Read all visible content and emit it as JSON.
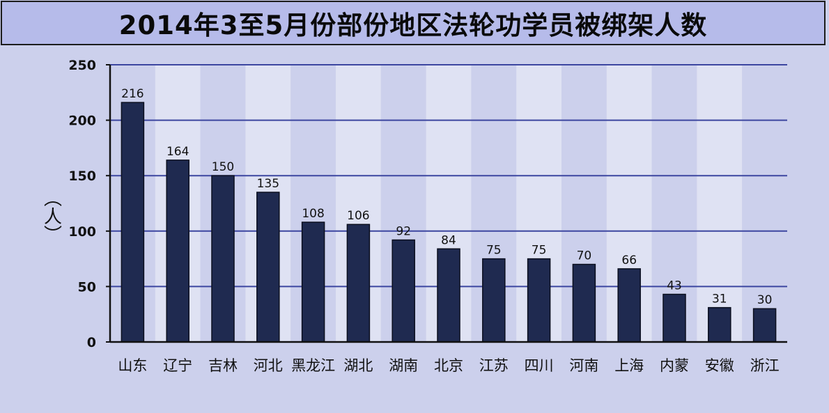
{
  "colors": {
    "background": "#ccd0ec",
    "title_background": "#b6bbea",
    "band_light": "#dfe2f3",
    "bar": "#1f2a50",
    "gridline": "#3c46a0",
    "axis": "#111111"
  },
  "chart_data": {
    "type": "bar",
    "title": "2014年3至5月份部份地区法轮功学员被绑架人数",
    "xlabel": "",
    "ylabel": "（人）",
    "ylim": [
      0,
      250
    ],
    "yticks": [
      0,
      50,
      100,
      150,
      200,
      250
    ],
    "grid": true,
    "legend": "none",
    "categories": [
      "山东",
      "辽宁",
      "吉林",
      "河北",
      "黑龙江",
      "湖北",
      "湖南",
      "北京",
      "江苏",
      "四川",
      "河南",
      "上海",
      "内蒙",
      "安徽",
      "浙江"
    ],
    "values": [
      216,
      164,
      150,
      135,
      108,
      106,
      92,
      84,
      75,
      75,
      70,
      66,
      43,
      31,
      30
    ]
  }
}
